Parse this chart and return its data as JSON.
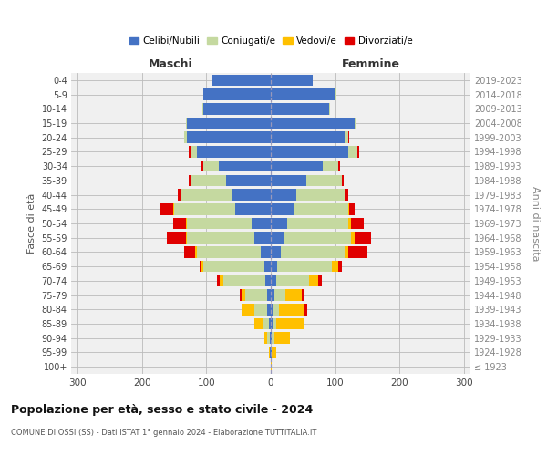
{
  "age_groups": [
    "100+",
    "95-99",
    "90-94",
    "85-89",
    "80-84",
    "75-79",
    "70-74",
    "65-69",
    "60-64",
    "55-59",
    "50-54",
    "45-49",
    "40-44",
    "35-39",
    "30-34",
    "25-29",
    "20-24",
    "15-19",
    "10-14",
    "5-9",
    "0-4"
  ],
  "birth_years": [
    "≤ 1923",
    "1924-1928",
    "1929-1933",
    "1934-1938",
    "1939-1943",
    "1944-1948",
    "1949-1953",
    "1954-1958",
    "1959-1963",
    "1964-1968",
    "1969-1973",
    "1974-1978",
    "1979-1983",
    "1984-1988",
    "1989-1993",
    "1994-1998",
    "1999-2003",
    "2004-2008",
    "2009-2013",
    "2014-2018",
    "2019-2023"
  ],
  "male": {
    "celibi": [
      0,
      1,
      2,
      3,
      5,
      5,
      9,
      10,
      15,
      25,
      30,
      55,
      60,
      70,
      80,
      115,
      130,
      130,
      105,
      105,
      90
    ],
    "coniugati": [
      0,
      1,
      3,
      8,
      20,
      35,
      65,
      95,
      100,
      105,
      100,
      95,
      80,
      55,
      25,
      10,
      5,
      2,
      1,
      0,
      0
    ],
    "vedovi": [
      0,
      1,
      5,
      15,
      20,
      5,
      5,
      3,
      2,
      2,
      2,
      1,
      0,
      0,
      0,
      0,
      0,
      0,
      0,
      0,
      0
    ],
    "divorziati": [
      0,
      0,
      0,
      0,
      0,
      3,
      5,
      3,
      18,
      30,
      20,
      22,
      4,
      3,
      2,
      2,
      0,
      0,
      0,
      0,
      0
    ]
  },
  "female": {
    "nubili": [
      0,
      1,
      2,
      3,
      3,
      5,
      9,
      10,
      15,
      20,
      25,
      35,
      40,
      55,
      80,
      120,
      115,
      130,
      90,
      100,
      65
    ],
    "coniugate": [
      0,
      0,
      3,
      5,
      10,
      18,
      50,
      85,
      100,
      105,
      95,
      85,
      75,
      55,
      25,
      15,
      5,
      2,
      2,
      2,
      0
    ],
    "vedove": [
      1,
      8,
      25,
      45,
      40,
      25,
      15,
      10,
      5,
      5,
      5,
      2,
      0,
      0,
      0,
      0,
      0,
      0,
      0,
      0,
      0
    ],
    "divorziate": [
      0,
      0,
      0,
      0,
      3,
      3,
      5,
      5,
      30,
      25,
      20,
      8,
      5,
      3,
      3,
      3,
      2,
      0,
      0,
      0,
      0
    ]
  },
  "colors": {
    "celibi": "#4472c4",
    "coniugati": "#c5d9a0",
    "vedovi": "#ffc000",
    "divorziati": "#e00000"
  },
  "title": "Popolazione per età, sesso e stato civile - 2024",
  "subtitle": "COMUNE DI OSSI (SS) - Dati ISTAT 1° gennaio 2024 - Elaborazione TUTTITALIA.IT",
  "xlabel_left": "Maschi",
  "xlabel_right": "Femmine",
  "ylabel_left": "Fasce di età",
  "ylabel_right": "Anni di nascita",
  "xlim": 310,
  "bg_color": "#ffffff",
  "grid_color": "#cccccc",
  "legend_labels": [
    "Celibi/Nubili",
    "Coniugati/e",
    "Vedovi/e",
    "Divorziati/e"
  ]
}
